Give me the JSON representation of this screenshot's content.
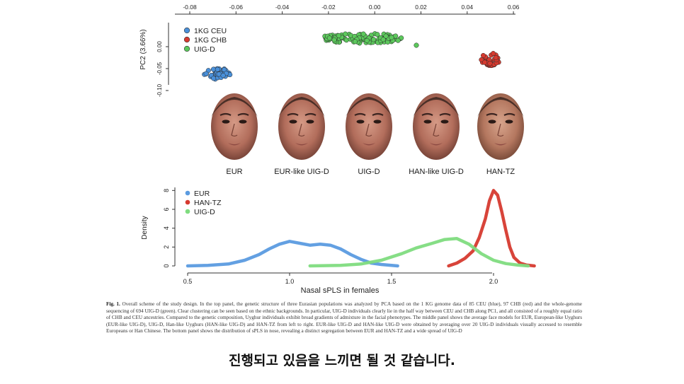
{
  "pca": {
    "x_ticks": [
      "-0.08",
      "-0.06",
      "-0.04",
      "-0.02",
      "0.00",
      "0.02",
      "0.04",
      "0.06"
    ],
    "y_ticks": [
      "0.00",
      "-0.05",
      "-0.10"
    ],
    "ylabel": "PC2 (3.66%)",
    "legend": [
      {
        "label": "1KG CEU",
        "color": "#4a90d9"
      },
      {
        "label": "1KG CHB",
        "color": "#d63a2f"
      },
      {
        "label": "UIG-D",
        "color": "#5cc85c"
      }
    ]
  },
  "faces": {
    "labels": [
      "EUR",
      "EUR-like UIG-D",
      "UIG-D",
      "HAN-like UIG-D",
      "HAN-TZ"
    ]
  },
  "chart_data": {
    "type": "line",
    "xlabel": "Nasal sPLS in females",
    "ylabel": "Density",
    "xlim": [
      0.45,
      2.2
    ],
    "ylim": [
      0,
      9
    ],
    "x_ticks": [
      "0.5",
      "1.0",
      "1.5",
      "2.0"
    ],
    "y_ticks": [
      "0",
      "2",
      "4",
      "6",
      "8"
    ],
    "legend_position": "top-left",
    "series": [
      {
        "name": "EUR",
        "color": "#5b9be0",
        "x": [
          0.5,
          0.6,
          0.7,
          0.78,
          0.85,
          0.9,
          0.95,
          1.0,
          1.05,
          1.1,
          1.15,
          1.2,
          1.25,
          1.3,
          1.35,
          1.4,
          1.45,
          1.5,
          1.53
        ],
        "y": [
          0.0,
          0.05,
          0.2,
          0.6,
          1.2,
          1.8,
          2.3,
          2.6,
          2.4,
          2.2,
          2.3,
          2.2,
          1.8,
          1.2,
          0.7,
          0.3,
          0.15,
          0.05,
          0.0
        ]
      },
      {
        "name": "HAN-TZ",
        "color": "#d63a2f",
        "x": [
          1.78,
          1.82,
          1.86,
          1.9,
          1.93,
          1.96,
          1.98,
          2.0,
          2.02,
          2.04,
          2.06,
          2.08,
          2.1,
          2.13,
          2.16,
          2.2
        ],
        "y": [
          0.0,
          0.3,
          0.8,
          1.6,
          3.0,
          5.0,
          6.9,
          8.0,
          7.5,
          5.8,
          3.8,
          2.0,
          0.9,
          0.3,
          0.1,
          0.0
        ]
      },
      {
        "name": "UIG-D",
        "color": "#7fdc7f",
        "x": [
          1.1,
          1.25,
          1.35,
          1.45,
          1.55,
          1.62,
          1.7,
          1.76,
          1.82,
          1.88,
          1.94,
          2.0,
          2.06,
          2.12,
          2.17
        ],
        "y": [
          0.0,
          0.05,
          0.2,
          0.6,
          1.3,
          1.9,
          2.4,
          2.8,
          2.9,
          2.3,
          1.3,
          0.6,
          0.25,
          0.08,
          0.0
        ]
      }
    ]
  },
  "caption": {
    "label": "Fig. 1.",
    "text": "Overall scheme of the study design. In the top panel, the genetic structure of three Eurasian populations was analyzed by PCA based on the 1 KG genome data of 85 CEU (blue), 97 CHB (red) and the whole-genome sequencing of 694 UIG-D (green). Clear clustering can be seen based on the ethnic backgrounds. In particular, UIG-D individuals clearly lie in the half way between CEU and CHB along PC1, and all consisted of a roughly equal ratio of CHB and CEU ancestries. Compared to the genetic composition, Uyghur individuals exhibit broad gradients of admixture in the facial phenotypes. The middle panel shows the average face models for EUR, European-like Uyghurs (EUR-like UIG-D), UIG-D, Han-like Uyghurs (HAN-like UIG-D) and HAN-TZ from left to right. EUR-like UIG-D and HAN-like UIG-D were obtained by averaging over 20 UIG-D individuals visually accessed to resemble Europeans or Han Chinese. The bottom panel shows the distribution of sPLS in nose, revealing a distinct segregation between EUR and HAN-TZ and a wide spread of UIG-D"
  },
  "subtitle": "진행되고 있음을 느끼면 될 것 같습니다."
}
